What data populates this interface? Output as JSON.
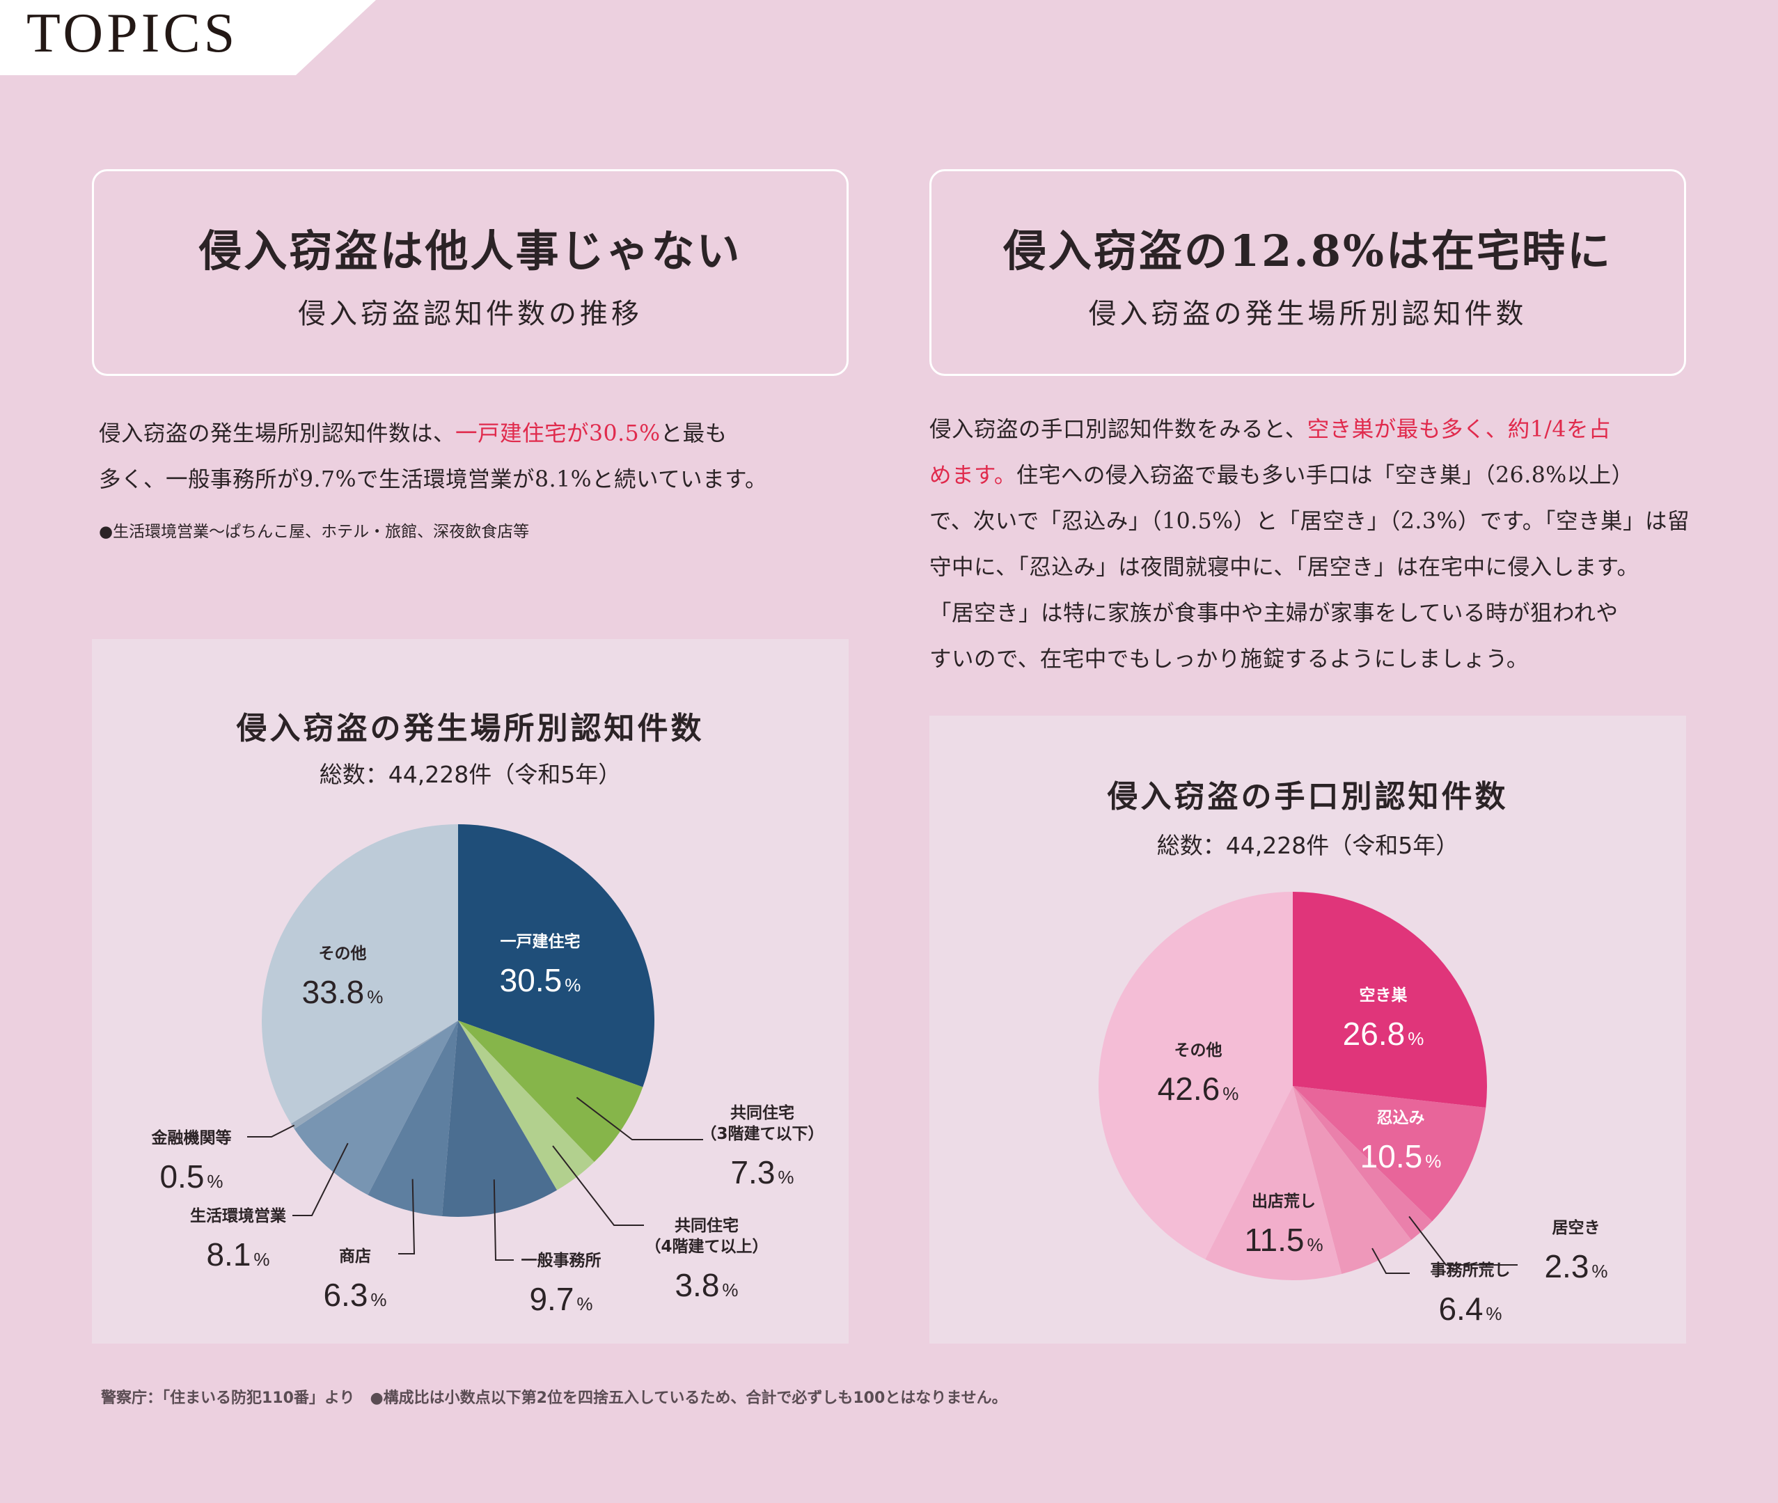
{
  "header": {
    "tag": "TOPICS"
  },
  "left_box": {
    "title": "侵入窃盗は他人事じゃない",
    "subtitle": "侵入窃盗認知件数の推移"
  },
  "right_box": {
    "title": "侵入窃盗の12.8%は在宅時に",
    "subtitle": "侵入窃盗の発生場所別認知件数"
  },
  "left_text": {
    "l1a": "侵入窃盗の発生場所別認知件数は、",
    "l1b": "一戸建住宅が30.5%",
    "l1c": "と最も",
    "l2": "多く、一般事務所が9.7%で生活環境営業が8.1%と続いています。",
    "note": "●生活環境営業〜ぱちんこ屋、ホテル・旅館、深夜飲食店等"
  },
  "right_text": {
    "l1a": "侵入窃盗の手口別認知件数をみると、",
    "l1b": "空き巣が最も多く、約1/4を占",
    "l2a": "めます。",
    "l2b": "住宅への侵入窃盗で最も多い手口は「空き巣」（26.8%以上）",
    "l3": "で、次いで「忍込み」（10.5%）と「居空き」（2.3%）です。「空き巣」は留",
    "l4": "守中に、「忍込み」は夜間就寝中に、「居空き」は在宅中に侵入します。",
    "l5": "「居空き」は特に家族が食事中や主婦が家事をしている時が狙われや",
    "l6": "すいので、在宅中でもしっかり施錠するようにしましょう。"
  },
  "chart_data": [
    {
      "type": "pie",
      "title": "侵入窃盗の発生場所別認知件数",
      "subtitle": "総数：44,228件（令和5年）",
      "unit": "%",
      "slices": [
        {
          "label": "一戸建住宅",
          "value": 30.5,
          "color": "#1f4e79"
        },
        {
          "label": "共同住宅（3階建て以下）",
          "label_l1": "共同住宅",
          "label_l2": "（3階建て以下）",
          "value": 7.3,
          "color": "#86b54a"
        },
        {
          "label": "共同住宅（4階建て以上）",
          "label_l1": "共同住宅",
          "label_l2": "（4階建て以上）",
          "value": 3.8,
          "color": "#b2d08e"
        },
        {
          "label": "一般事務所",
          "value": 9.7,
          "color": "#4b6e91"
        },
        {
          "label": "商店",
          "value": 6.3,
          "color": "#5e7fa0"
        },
        {
          "label": "生活環境営業",
          "value": 8.1,
          "color": "#7895b2"
        },
        {
          "label": "金融機関等",
          "value": 0.5,
          "color": "#97aabd"
        },
        {
          "label": "その他",
          "value": 33.8,
          "color": "#bdcbd8"
        }
      ]
    },
    {
      "type": "pie",
      "title": "侵入窃盗の手口別認知件数",
      "subtitle": "総数：44,228件（令和5年）",
      "unit": "%",
      "slices": [
        {
          "label": "空き巣",
          "value": 26.8,
          "color": "#e0357a"
        },
        {
          "label": "忍込み",
          "value": 10.5,
          "color": "#e8659a"
        },
        {
          "label": "居空き",
          "value": 2.3,
          "color": "#ea80ab"
        },
        {
          "label": "事務所荒し",
          "value": 6.4,
          "color": "#ee98ba"
        },
        {
          "label": "出店荒し",
          "value": 11.5,
          "color": "#f2aecb"
        },
        {
          "label": "その他",
          "value": 42.6,
          "color": "#f4bdd6"
        }
      ]
    }
  ],
  "footer": {
    "text": "警察庁：「住まいる防犯110番」より　●構成比は小数点以下第2位を四捨五入しているため、合計で必ずしも100とはなりません。"
  }
}
